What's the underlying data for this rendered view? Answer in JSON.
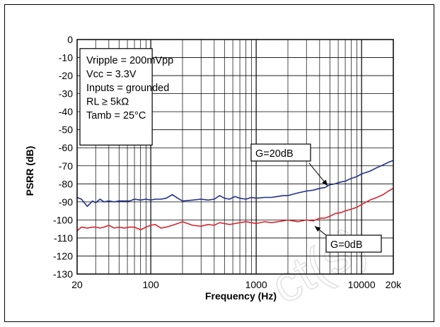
{
  "chart_data": {
    "type": "line",
    "title": "",
    "xlabel": "Frequency (Hz)",
    "ylabel": "PSRR (dB)",
    "xscale": "log",
    "xlim": [
      20,
      20000
    ],
    "ylim": [
      -130,
      0
    ],
    "grid": true,
    "x_ticks": [
      {
        "value": 20,
        "label": "20"
      },
      {
        "value": 100,
        "label": "100"
      },
      {
        "value": 1000,
        "label": "1000"
      },
      {
        "value": 10000,
        "label": "10000"
      },
      {
        "value": 20000,
        "label": "20k"
      }
    ],
    "y_ticks": [
      0,
      -10,
      -20,
      -30,
      -40,
      -50,
      -60,
      -70,
      -80,
      -90,
      -100,
      -110,
      -120,
      -130
    ],
    "y_tick_labels": [
      "0",
      "-10",
      "-20",
      "-30",
      "-40",
      "-50",
      "-60",
      "-70",
      "-80",
      "-90",
      "-100",
      "-110",
      "-120",
      "-130"
    ],
    "conditions": [
      "Vripple = 200mVpp",
      "Vcc = 3.3V",
      "Inputs = grounded",
      "RL ≥ 5kΩ",
      "Tamb  = 25°C"
    ],
    "series": [
      {
        "name": "G=20dB",
        "color": "#1f2f8c",
        "x": [
          20,
          22,
          25,
          28,
          30,
          33,
          36,
          40,
          45,
          50,
          56,
          63,
          70,
          80,
          90,
          100,
          110,
          125,
          140,
          160,
          180,
          200,
          250,
          300,
          350,
          400,
          450,
          500,
          560,
          630,
          700,
          800,
          900,
          1000,
          1200,
          1400,
          1600,
          1800,
          2000,
          2500,
          3000,
          3500,
          4000,
          4500,
          5000,
          5600,
          6300,
          7000,
          8000,
          9000,
          10000,
          12000,
          14000,
          16000,
          18000,
          20000
        ],
        "y": [
          -87.5,
          -88.5,
          -92.5,
          -89.5,
          -90.5,
          -88.5,
          -90,
          -89.5,
          -90,
          -89.5,
          -89.5,
          -89.5,
          -88.5,
          -89,
          -88.5,
          -89,
          -88.5,
          -88.5,
          -88,
          -86,
          -88,
          -89.5,
          -89,
          -88.5,
          -89,
          -88.5,
          -86.5,
          -88,
          -88.5,
          -87,
          -88,
          -88.5,
          -87.5,
          -88,
          -87.5,
          -87.5,
          -87,
          -86.5,
          -86.5,
          -85,
          -84,
          -83.5,
          -82.5,
          -82,
          -80.5,
          -80,
          -79,
          -78.5,
          -77,
          -76,
          -74.5,
          -73,
          -71,
          -69.5,
          -68,
          -67
        ]
      },
      {
        "name": "G=0dB",
        "color": "#d8242c",
        "x": [
          20,
          22,
          25,
          28,
          30,
          33,
          36,
          40,
          45,
          50,
          56,
          63,
          70,
          80,
          90,
          100,
          110,
          125,
          140,
          160,
          180,
          200,
          250,
          300,
          350,
          400,
          450,
          500,
          560,
          630,
          700,
          800,
          900,
          1000,
          1200,
          1400,
          1600,
          1800,
          2000,
          2500,
          3000,
          3500,
          4000,
          4500,
          5000,
          5600,
          6300,
          7000,
          8000,
          9000,
          10000,
          12000,
          14000,
          16000,
          18000,
          20000
        ],
        "y": [
          -106,
          -104,
          -104.5,
          -104,
          -104,
          -104.5,
          -104,
          -103,
          -104.5,
          -104,
          -104.5,
          -104,
          -104,
          -105.5,
          -104,
          -103,
          -102.5,
          -104.5,
          -104,
          -103,
          -102,
          -101,
          -103,
          -103.5,
          -102.5,
          -103,
          -101.5,
          -102,
          -102.5,
          -102,
          -101.5,
          -101,
          -101.5,
          -102,
          -101,
          -101.5,
          -101,
          -100.5,
          -100,
          -101,
          -100,
          -100.5,
          -99,
          -99,
          -98,
          -96.5,
          -96,
          -95,
          -94,
          -93,
          -91.5,
          -89,
          -87.5,
          -86,
          -84,
          -82.5
        ]
      }
    ],
    "annotations": [
      {
        "text": "G=20dB",
        "series": "G=20dB"
      },
      {
        "text": "G=0dB",
        "series": "G=0dB"
      }
    ]
  },
  "watermark": "ct(s)"
}
